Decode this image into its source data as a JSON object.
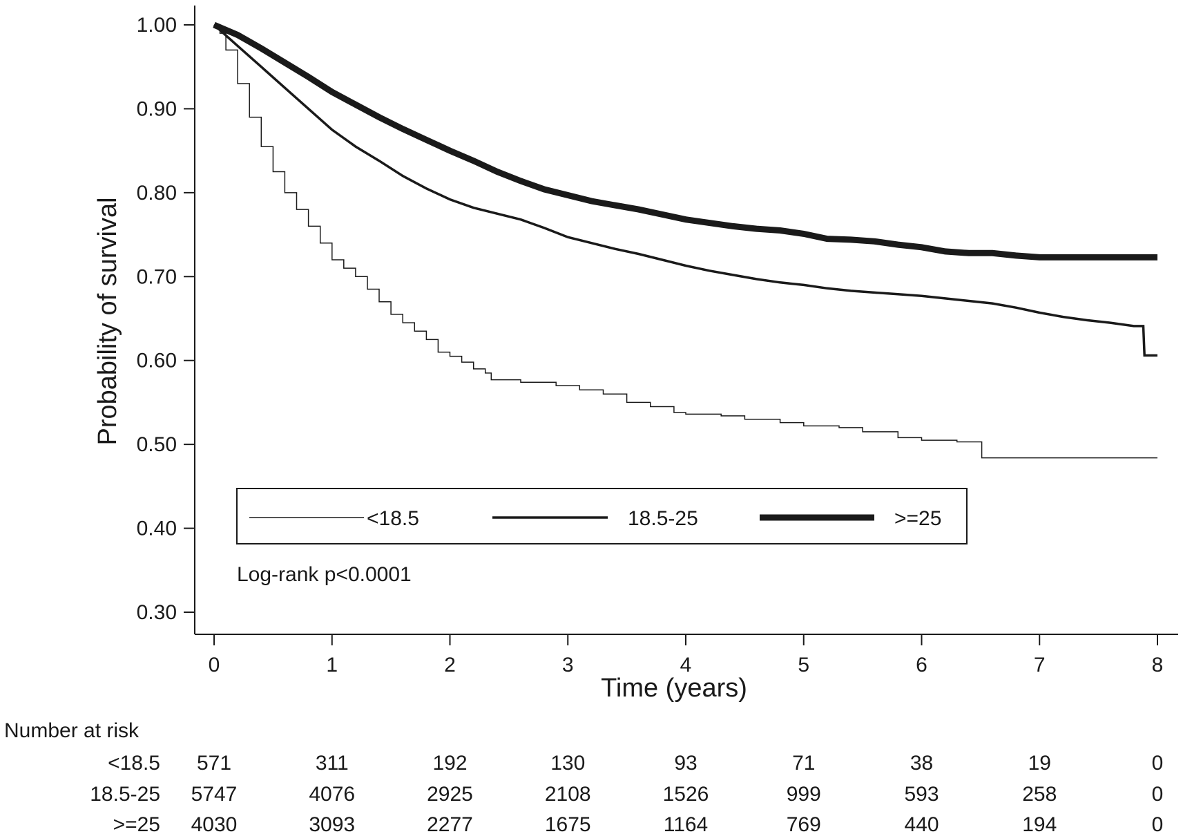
{
  "chart_data": {
    "type": "line",
    "subtype": "kaplan-meier",
    "title": "",
    "xlabel": "Time (years)",
    "ylabel": "Probability of survival",
    "xlim": [
      0,
      8
    ],
    "ylim": [
      0.3,
      1.0
    ],
    "x_ticks": [
      0,
      1,
      2,
      3,
      4,
      5,
      6,
      7,
      8
    ],
    "x_tick_labels": [
      "0",
      "1",
      "2",
      "3",
      "4",
      "5",
      "6",
      "7",
      "8"
    ],
    "y_ticks": [
      1.0,
      0.9,
      0.8,
      0.7,
      0.6,
      0.5,
      0.4,
      0.3
    ],
    "y_tick_labels": [
      "1.00",
      "0.90",
      "0.80",
      "0.70",
      "0.60",
      "0.50",
      "0.40",
      "0.30"
    ],
    "grid": false,
    "legend_position": "bottom-center inside plot",
    "annotation": "Log-rank p<0.0001",
    "series": [
      {
        "name": "<18.5",
        "line_weight": "thin",
        "step": true,
        "points": [
          [
            0,
            1.0
          ],
          [
            0.05,
            0.99
          ],
          [
            0.1,
            0.97
          ],
          [
            0.2,
            0.93
          ],
          [
            0.3,
            0.89
          ],
          [
            0.4,
            0.855
          ],
          [
            0.5,
            0.825
          ],
          [
            0.6,
            0.8
          ],
          [
            0.7,
            0.78
          ],
          [
            0.8,
            0.76
          ],
          [
            0.9,
            0.74
          ],
          [
            1.0,
            0.72
          ],
          [
            1.1,
            0.71
          ],
          [
            1.2,
            0.7
          ],
          [
            1.3,
            0.685
          ],
          [
            1.4,
            0.67
          ],
          [
            1.5,
            0.655
          ],
          [
            1.6,
            0.645
          ],
          [
            1.7,
            0.635
          ],
          [
            1.8,
            0.625
          ],
          [
            1.9,
            0.61
          ],
          [
            2.0,
            0.605
          ],
          [
            2.1,
            0.598
          ],
          [
            2.2,
            0.59
          ],
          [
            2.3,
            0.585
          ],
          [
            2.35,
            0.577
          ],
          [
            2.6,
            0.574
          ],
          [
            2.9,
            0.57
          ],
          [
            3.1,
            0.565
          ],
          [
            3.3,
            0.56
          ],
          [
            3.5,
            0.55
          ],
          [
            3.7,
            0.545
          ],
          [
            3.9,
            0.538
          ],
          [
            4.0,
            0.536
          ],
          [
            4.3,
            0.534
          ],
          [
            4.5,
            0.53
          ],
          [
            4.8,
            0.526
          ],
          [
            5.0,
            0.522
          ],
          [
            5.3,
            0.52
          ],
          [
            5.5,
            0.515
          ],
          [
            5.8,
            0.508
          ],
          [
            6.0,
            0.505
          ],
          [
            6.3,
            0.503
          ],
          [
            6.5,
            0.503
          ],
          [
            6.51,
            0.484
          ],
          [
            8.0,
            0.484
          ]
        ]
      },
      {
        "name": "18.5-25",
        "line_weight": "medium",
        "step": false,
        "points": [
          [
            0,
            1.0
          ],
          [
            0.2,
            0.975
          ],
          [
            0.4,
            0.95
          ],
          [
            0.6,
            0.925
          ],
          [
            0.8,
            0.9
          ],
          [
            1.0,
            0.875
          ],
          [
            1.2,
            0.855
          ],
          [
            1.4,
            0.838
          ],
          [
            1.6,
            0.82
          ],
          [
            1.8,
            0.805
          ],
          [
            2.0,
            0.792
          ],
          [
            2.2,
            0.782
          ],
          [
            2.4,
            0.775
          ],
          [
            2.6,
            0.768
          ],
          [
            2.8,
            0.758
          ],
          [
            3.0,
            0.747
          ],
          [
            3.2,
            0.74
          ],
          [
            3.4,
            0.733
          ],
          [
            3.6,
            0.727
          ],
          [
            3.8,
            0.72
          ],
          [
            4.0,
            0.713
          ],
          [
            4.2,
            0.707
          ],
          [
            4.4,
            0.702
          ],
          [
            4.6,
            0.697
          ],
          [
            4.8,
            0.693
          ],
          [
            5.0,
            0.69
          ],
          [
            5.2,
            0.686
          ],
          [
            5.4,
            0.683
          ],
          [
            5.6,
            0.681
          ],
          [
            5.8,
            0.679
          ],
          [
            6.0,
            0.677
          ],
          [
            6.2,
            0.674
          ],
          [
            6.4,
            0.671
          ],
          [
            6.6,
            0.668
          ],
          [
            6.8,
            0.663
          ],
          [
            7.0,
            0.657
          ],
          [
            7.2,
            0.652
          ],
          [
            7.4,
            0.648
          ],
          [
            7.6,
            0.645
          ],
          [
            7.8,
            0.641
          ],
          [
            7.88,
            0.641
          ],
          [
            7.89,
            0.606
          ],
          [
            8.0,
            0.606
          ]
        ]
      },
      {
        "name": ">=25",
        "line_weight": "thick",
        "step": false,
        "points": [
          [
            0,
            1.0
          ],
          [
            0.2,
            0.988
          ],
          [
            0.4,
            0.972
          ],
          [
            0.6,
            0.955
          ],
          [
            0.8,
            0.938
          ],
          [
            1.0,
            0.92
          ],
          [
            1.2,
            0.905
          ],
          [
            1.4,
            0.89
          ],
          [
            1.6,
            0.876
          ],
          [
            1.8,
            0.863
          ],
          [
            2.0,
            0.85
          ],
          [
            2.2,
            0.838
          ],
          [
            2.4,
            0.825
          ],
          [
            2.6,
            0.814
          ],
          [
            2.8,
            0.804
          ],
          [
            3.0,
            0.797
          ],
          [
            3.2,
            0.79
          ],
          [
            3.4,
            0.785
          ],
          [
            3.6,
            0.78
          ],
          [
            3.8,
            0.774
          ],
          [
            4.0,
            0.768
          ],
          [
            4.2,
            0.764
          ],
          [
            4.4,
            0.76
          ],
          [
            4.6,
            0.757
          ],
          [
            4.8,
            0.755
          ],
          [
            5.0,
            0.751
          ],
          [
            5.2,
            0.745
          ],
          [
            5.4,
            0.744
          ],
          [
            5.6,
            0.742
          ],
          [
            5.8,
            0.738
          ],
          [
            6.0,
            0.735
          ],
          [
            6.2,
            0.73
          ],
          [
            6.4,
            0.728
          ],
          [
            6.6,
            0.728
          ],
          [
            6.8,
            0.725
          ],
          [
            7.0,
            0.723
          ],
          [
            7.2,
            0.723
          ],
          [
            7.5,
            0.723
          ],
          [
            8.0,
            0.723
          ]
        ]
      }
    ],
    "risk_table": {
      "title": "Number at risk",
      "times": [
        0,
        1,
        2,
        3,
        4,
        5,
        6,
        7,
        8
      ],
      "rows": [
        {
          "label": "<18.5",
          "values": [
            "571",
            "311",
            "192",
            "130",
            "93",
            "71",
            "38",
            "19",
            "0"
          ]
        },
        {
          "label": "18.5-25",
          "values": [
            "5747",
            "4076",
            "2925",
            "2108",
            "1526",
            "999",
            "593",
            "258",
            "0"
          ]
        },
        {
          "label": ">=25",
          "values": [
            "4030",
            "3093",
            "2277",
            "1675",
            "1164",
            "769",
            "440",
            "194",
            "0"
          ]
        }
      ]
    }
  }
}
